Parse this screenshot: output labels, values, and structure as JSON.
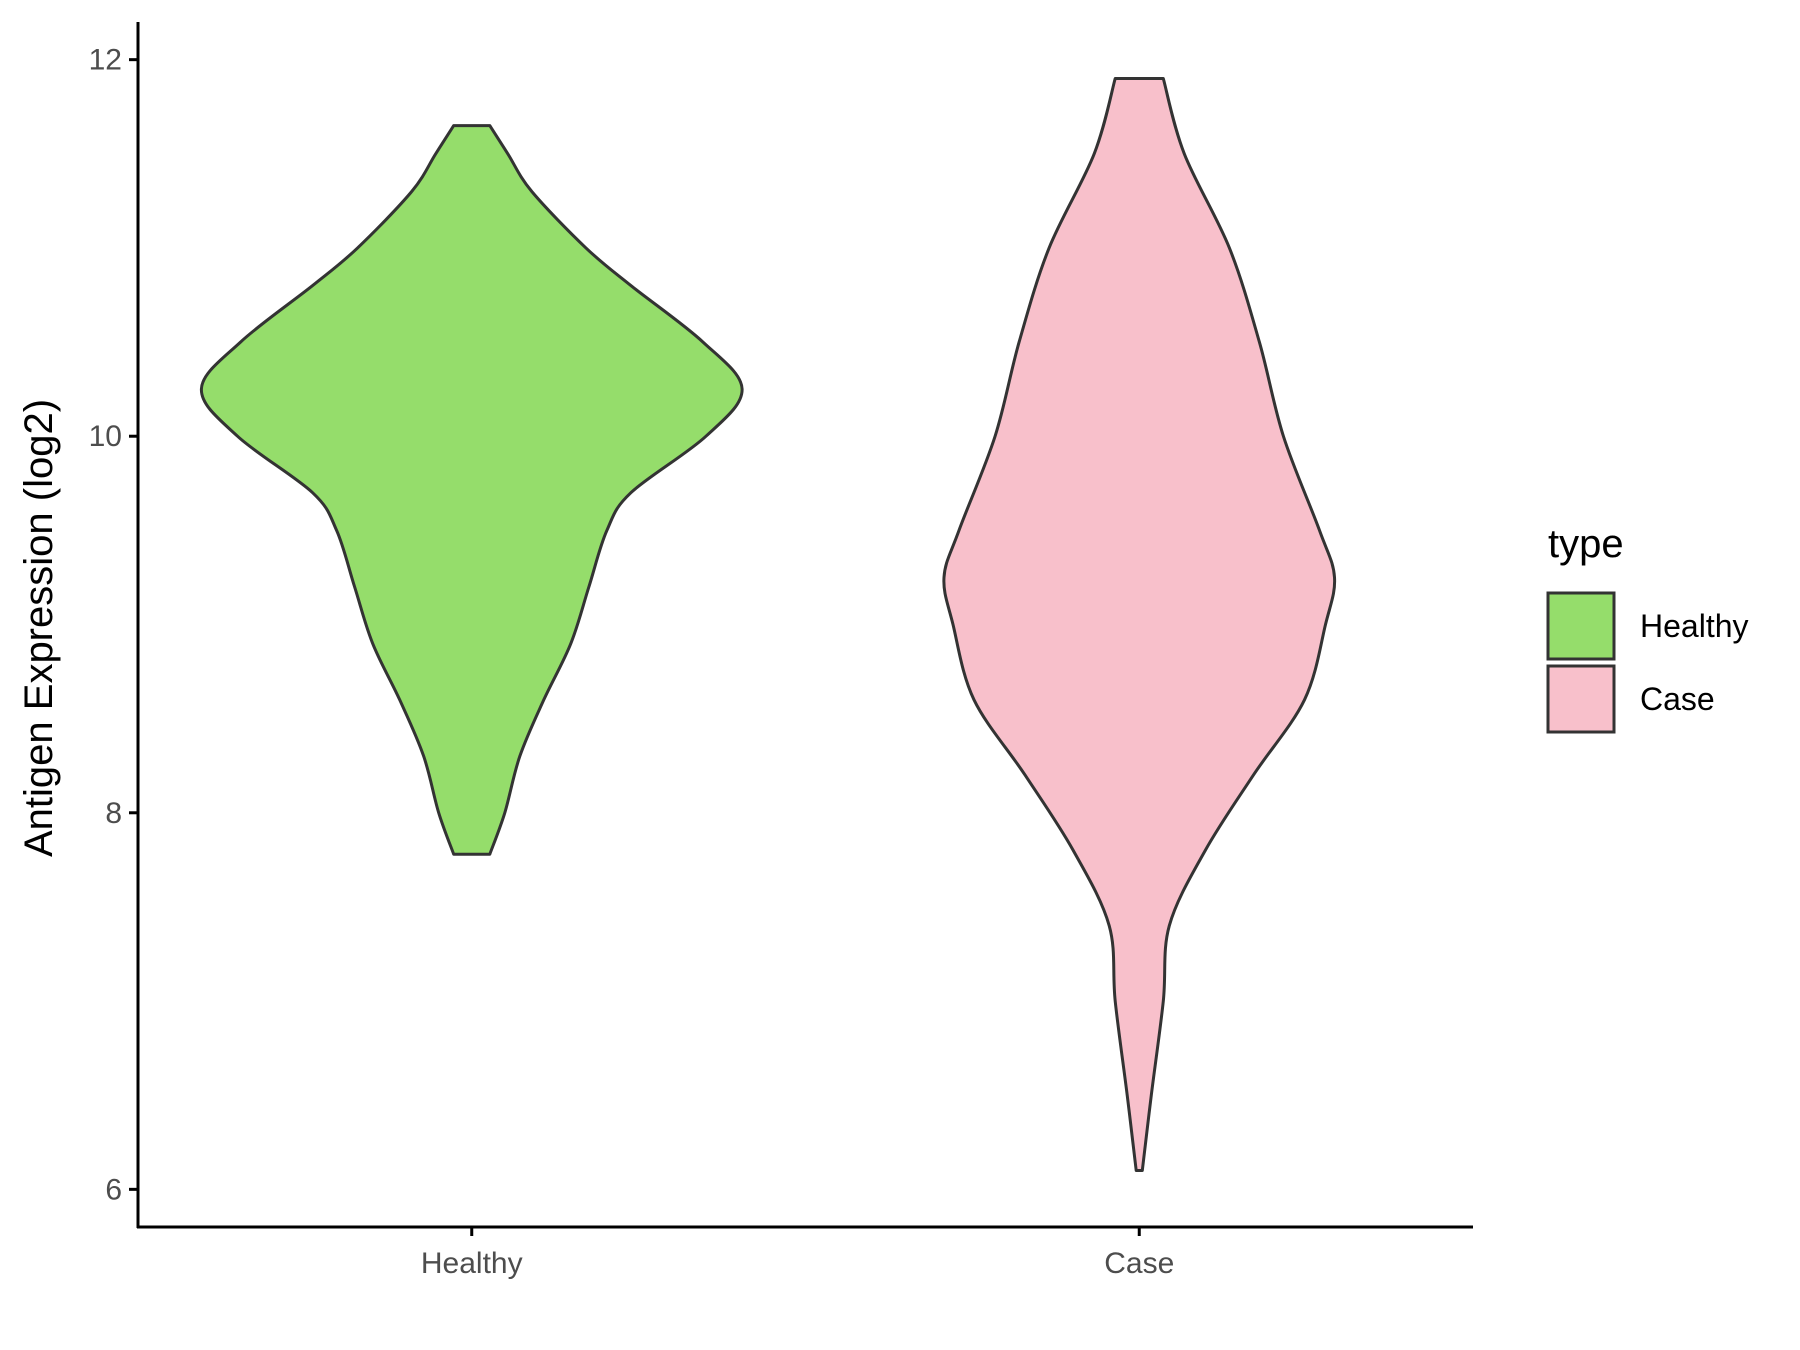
{
  "chart_data": {
    "type": "violin",
    "title": "",
    "xlabel": "",
    "ylabel": "Antigen Expression (log2)",
    "ylim": [
      5.8,
      12.2
    ],
    "yticks": [
      6,
      8,
      10,
      12
    ],
    "grid": false,
    "legend": {
      "title": "type",
      "position": "right",
      "entries": [
        "Healthy",
        "Case"
      ]
    },
    "categories": [
      "Healthy",
      "Case"
    ],
    "series": [
      {
        "name": "Healthy",
        "color": "#95DD6B",
        "min": 7.78,
        "max": 11.65,
        "density_profile": [
          [
            7.78,
            0.06
          ],
          [
            8.0,
            0.11
          ],
          [
            8.3,
            0.16
          ],
          [
            8.6,
            0.24
          ],
          [
            8.9,
            0.33
          ],
          [
            9.2,
            0.39
          ],
          [
            9.5,
            0.45
          ],
          [
            9.7,
            0.53
          ],
          [
            10.0,
            0.78
          ],
          [
            10.25,
            0.9
          ],
          [
            10.5,
            0.77
          ],
          [
            10.8,
            0.53
          ],
          [
            11.0,
            0.38
          ],
          [
            11.3,
            0.2
          ],
          [
            11.5,
            0.12
          ],
          [
            11.65,
            0.06
          ]
        ]
      },
      {
        "name": "Case",
        "color": "#F8C0CB",
        "min": 6.1,
        "max": 11.9,
        "density_profile": [
          [
            6.1,
            0.01
          ],
          [
            6.5,
            0.04
          ],
          [
            7.0,
            0.08
          ],
          [
            7.4,
            0.1
          ],
          [
            7.8,
            0.22
          ],
          [
            8.2,
            0.38
          ],
          [
            8.6,
            0.55
          ],
          [
            9.0,
            0.62
          ],
          [
            9.25,
            0.65
          ],
          [
            9.5,
            0.6
          ],
          [
            10.0,
            0.48
          ],
          [
            10.5,
            0.4
          ],
          [
            11.0,
            0.3
          ],
          [
            11.5,
            0.15
          ],
          [
            11.9,
            0.08
          ]
        ]
      }
    ]
  }
}
